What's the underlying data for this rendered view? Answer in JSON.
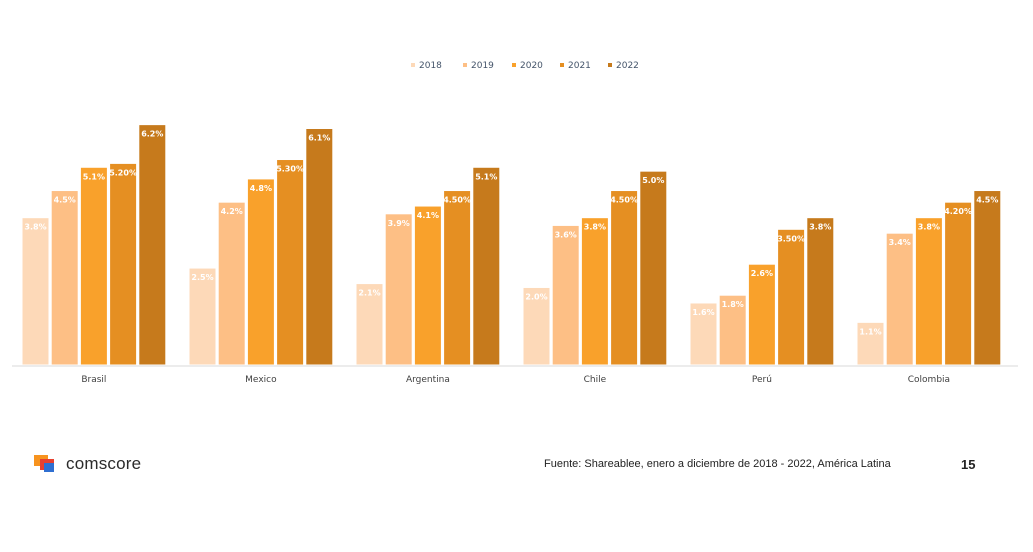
{
  "chart_data": {
    "type": "bar",
    "categories": [
      "Brasil",
      "Mexico",
      "Argentina",
      "Chile",
      "Perú",
      "Colombia"
    ],
    "series": [
      {
        "name": "2018",
        "color": "#fdd9b8",
        "values": [
          3.8,
          2.5,
          2.1,
          2.0,
          1.6,
          1.1
        ],
        "labels": [
          "3.8%",
          "2.5%",
          "2.1%",
          "2.0%",
          "1.6%",
          "1.1%"
        ]
      },
      {
        "name": "2019",
        "color": "#fdbf85",
        "values": [
          4.5,
          4.2,
          3.9,
          3.6,
          1.8,
          3.4
        ],
        "labels": [
          "4.5%",
          "4.2%",
          "3.9%",
          "3.6%",
          "1.8%",
          "3.4%"
        ]
      },
      {
        "name": "2020",
        "color": "#f9a12b",
        "values": [
          5.1,
          4.8,
          4.1,
          3.8,
          2.6,
          3.8
        ],
        "labels": [
          "5.1%",
          "4.8%",
          "4.1%",
          "3.8%",
          "2.6%",
          "3.8%"
        ]
      },
      {
        "name": "2021",
        "color": "#e58f22",
        "values": [
          5.2,
          5.3,
          4.5,
          4.5,
          3.5,
          4.2
        ],
        "labels": [
          "5.20%",
          "5.30%",
          "4.50%",
          "4.50%",
          "3.50%",
          "4.20%"
        ]
      },
      {
        "name": "2022",
        "color": "#c67a1c",
        "values": [
          6.2,
          6.1,
          5.1,
          5.0,
          3.8,
          4.5
        ],
        "labels": [
          "6.2%",
          "6.1%",
          "5.1%",
          "5.0%",
          "3.8%",
          "4.5%"
        ]
      }
    ],
    "ylim": [
      0,
      6.5
    ],
    "grid": false,
    "legend_position": "top-center"
  },
  "footer": {
    "brand": "comscore",
    "source": "Fuente: Shareablee,  enero a diciembre de 2018 - 2022, América Latina",
    "page": "15"
  }
}
